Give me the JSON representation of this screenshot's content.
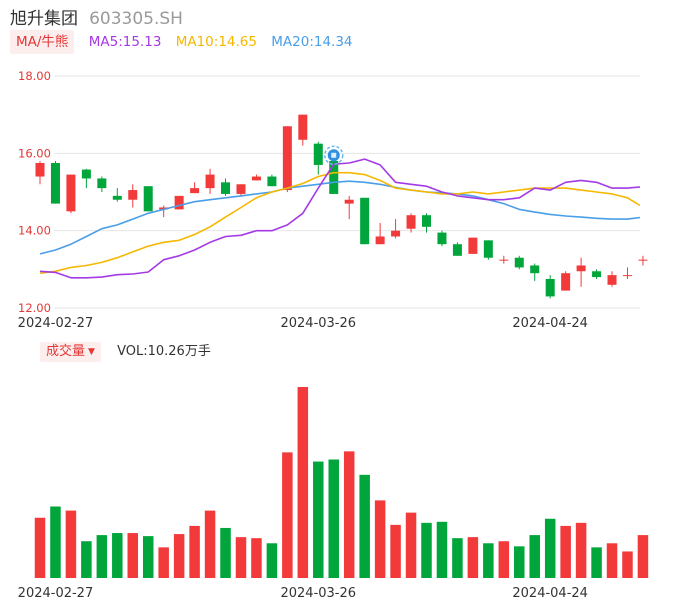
{
  "header": {
    "name": "旭升集团",
    "code": "603305.SH"
  },
  "ma_legend": {
    "label": "MA/牛熊",
    "items": [
      {
        "text": "MA5:15.13",
        "color": "#a43ae6"
      },
      {
        "text": "MA10:14.65",
        "color": "#f5b800"
      },
      {
        "text": "MA20:14.34",
        "color": "#4a9ee8"
      }
    ]
  },
  "volume_legend": {
    "label": "成交量",
    "value": "VOL:10.26万手"
  },
  "colors": {
    "up": "#f23a3a",
    "down": "#00a53b",
    "ma5": "#a43ae6",
    "ma10": "#f5b800",
    "ma20": "#4a9ee8",
    "grid": "#e6e6e6",
    "axis_label": "#e23838",
    "date_label": "#333333"
  },
  "chart_data": {
    "type": "candlestick",
    "price_axis": {
      "ylim": [
        12.0,
        18.0
      ],
      "ticks": [
        "12.00",
        "14.00",
        "16.00",
        "18.00"
      ]
    },
    "date_ticks": [
      {
        "label": "2024-02-27",
        "index": 1
      },
      {
        "label": "2024-03-26",
        "index": 18
      },
      {
        "label": "2024-04-24",
        "index": 33
      }
    ],
    "candles": [
      {
        "o": 15.4,
        "c": 15.75,
        "h": 15.8,
        "l": 15.2,
        "v": 59
      },
      {
        "o": 15.75,
        "c": 14.7,
        "h": 15.8,
        "l": 14.7,
        "v": 70
      },
      {
        "o": 14.5,
        "c": 15.45,
        "h": 15.45,
        "l": 14.45,
        "v": 66
      },
      {
        "o": 15.58,
        "c": 15.35,
        "h": 15.6,
        "l": 15.1,
        "v": 36
      },
      {
        "o": 15.35,
        "c": 15.1,
        "h": 15.4,
        "l": 15.0,
        "v": 42
      },
      {
        "o": 14.9,
        "c": 14.8,
        "h": 15.1,
        "l": 14.75,
        "v": 44
      },
      {
        "o": 14.8,
        "c": 15.05,
        "h": 15.2,
        "l": 14.6,
        "v": 44
      },
      {
        "o": 15.15,
        "c": 14.5,
        "h": 15.15,
        "l": 14.5,
        "v": 41
      },
      {
        "o": 14.55,
        "c": 14.6,
        "h": 14.65,
        "l": 14.35,
        "v": 30
      },
      {
        "o": 14.55,
        "c": 14.9,
        "h": 14.9,
        "l": 14.55,
        "v": 43
      },
      {
        "o": 14.97,
        "c": 15.1,
        "h": 15.25,
        "l": 14.97,
        "v": 51
      },
      {
        "o": 15.1,
        "c": 15.45,
        "h": 15.6,
        "l": 14.95,
        "v": 66
      },
      {
        "o": 15.25,
        "c": 14.95,
        "h": 15.35,
        "l": 14.9,
        "v": 49
      },
      {
        "o": 14.95,
        "c": 15.2,
        "h": 15.2,
        "l": 14.9,
        "v": 40
      },
      {
        "o": 15.3,
        "c": 15.4,
        "h": 15.45,
        "l": 15.3,
        "v": 39
      },
      {
        "o": 15.4,
        "c": 15.15,
        "h": 15.45,
        "l": 15.15,
        "v": 34
      },
      {
        "o": 15.05,
        "c": 16.7,
        "h": 16.7,
        "l": 15.0,
        "v": 123
      },
      {
        "o": 16.35,
        "c": 17.0,
        "h": 17.0,
        "l": 16.2,
        "v": 187
      },
      {
        "o": 16.25,
        "c": 15.7,
        "h": 16.3,
        "l": 15.45,
        "v": 114
      },
      {
        "o": 15.8,
        "c": 14.95,
        "h": 15.9,
        "l": 14.95,
        "v": 116
      },
      {
        "o": 14.7,
        "c": 14.8,
        "h": 14.9,
        "l": 14.3,
        "v": 124
      },
      {
        "o": 14.85,
        "c": 13.65,
        "h": 14.85,
        "l": 13.65,
        "v": 101
      },
      {
        "o": 13.65,
        "c": 13.85,
        "h": 14.2,
        "l": 13.65,
        "v": 76
      },
      {
        "o": 13.85,
        "c": 14.0,
        "h": 14.3,
        "l": 13.8,
        "v": 52
      },
      {
        "o": 14.05,
        "c": 14.4,
        "h": 14.45,
        "l": 13.95,
        "v": 64
      },
      {
        "o": 14.4,
        "c": 14.1,
        "h": 14.45,
        "l": 13.95,
        "v": 54
      },
      {
        "o": 13.95,
        "c": 13.65,
        "h": 14.0,
        "l": 13.6,
        "v": 55
      },
      {
        "o": 13.65,
        "c": 13.35,
        "h": 13.7,
        "l": 13.35,
        "v": 39
      },
      {
        "o": 13.4,
        "c": 13.82,
        "h": 13.82,
        "l": 13.4,
        "v": 40
      },
      {
        "o": 13.75,
        "c": 13.3,
        "h": 13.75,
        "l": 13.25,
        "v": 34
      },
      {
        "o": 13.25,
        "c": 13.25,
        "h": 13.35,
        "l": 13.15,
        "v": 36
      },
      {
        "o": 13.3,
        "c": 13.05,
        "h": 13.35,
        "l": 13.0,
        "v": 31
      },
      {
        "o": 13.1,
        "c": 12.9,
        "h": 13.15,
        "l": 12.7,
        "v": 42
      },
      {
        "o": 12.75,
        "c": 12.3,
        "h": 12.85,
        "l": 12.25,
        "v": 58
      },
      {
        "o": 12.45,
        "c": 12.9,
        "h": 12.95,
        "l": 12.45,
        "v": 51
      },
      {
        "o": 12.95,
        "c": 13.1,
        "h": 13.3,
        "l": 12.55,
        "v": 54
      },
      {
        "o": 12.95,
        "c": 12.8,
        "h": 13.0,
        "l": 12.75,
        "v": 30
      },
      {
        "o": 12.6,
        "c": 12.85,
        "h": 12.95,
        "l": 12.55,
        "v": 34
      },
      {
        "o": 12.85,
        "c": 12.85,
        "h": 13.05,
        "l": 12.75,
        "v": 26
      },
      {
        "o": 13.25,
        "c": 13.25,
        "h": 13.35,
        "l": 13.1,
        "v": 42
      }
    ],
    "ma5": [
      12.95,
      12.92,
      12.78,
      12.78,
      12.8,
      12.86,
      12.88,
      12.93,
      13.25,
      13.35,
      13.5,
      13.7,
      13.85,
      13.88,
      14.0,
      14.0,
      14.15,
      14.45,
      15.1,
      15.72,
      15.75,
      15.85,
      15.7,
      15.25,
      15.2,
      15.15,
      15.0,
      14.9,
      14.85,
      14.8,
      14.8,
      14.85,
      15.1,
      15.05,
      15.25,
      15.3,
      15.25,
      15.1,
      15.1,
      15.13
    ],
    "ma10": [
      12.9,
      12.95,
      13.05,
      13.1,
      13.18,
      13.3,
      13.45,
      13.6,
      13.7,
      13.75,
      13.9,
      14.1,
      14.35,
      14.6,
      14.85,
      15.0,
      15.1,
      15.22,
      15.4,
      15.5,
      15.5,
      15.45,
      15.3,
      15.1,
      15.05,
      15.0,
      14.95,
      14.95,
      15.0,
      14.95,
      15.0,
      15.05,
      15.1,
      15.1,
      15.1,
      15.05,
      15.0,
      14.95,
      14.85,
      14.65
    ],
    "ma20": [
      13.4,
      13.5,
      13.65,
      13.85,
      14.05,
      14.15,
      14.3,
      14.45,
      14.55,
      14.65,
      14.75,
      14.8,
      14.85,
      14.9,
      14.95,
      15.0,
      15.1,
      15.15,
      15.2,
      15.25,
      15.28,
      15.25,
      15.2,
      15.12,
      15.05,
      15.0,
      14.98,
      14.95,
      14.9,
      14.8,
      14.7,
      14.55,
      14.48,
      14.42,
      14.38,
      14.35,
      14.32,
      14.3,
      14.3,
      14.34
    ]
  }
}
